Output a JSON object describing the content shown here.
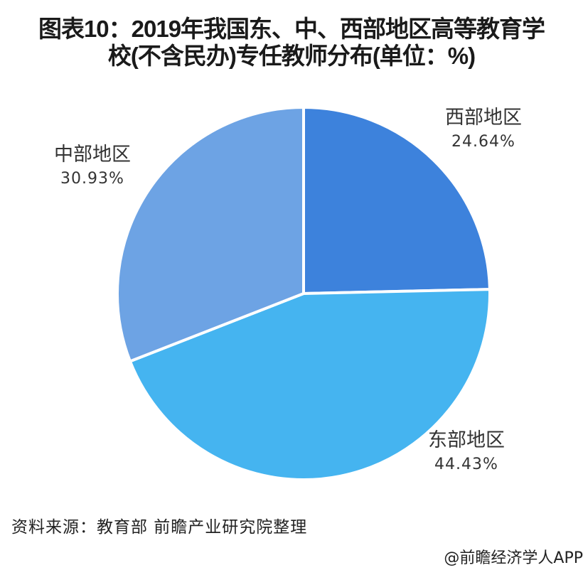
{
  "title": {
    "line1": "图表10：2019年我国东、中、西部地区高等教育学",
    "line2": "校(不含民办)专任教师分布(单位：%)"
  },
  "chart_data": {
    "type": "pie",
    "title": "图表10：2019年我国东、中、西部地区高等教育学校(不含民办)专任教师分布(单位：%)",
    "unit": "%",
    "categories": [
      "西部地区",
      "东部地区",
      "中部地区"
    ],
    "values": [
      24.64,
      44.43,
      30.93
    ],
    "value_labels": [
      "24.64%",
      "44.43%",
      "30.93%"
    ],
    "colors": [
      "#3d82dc",
      "#45b4f0",
      "#6da3e4"
    ],
    "start_angle": "12 o'clock, clockwise",
    "legend": "none (labels placed outside slices)"
  },
  "labels": {
    "west": {
      "name": "西部地区",
      "value": "24.64%"
    },
    "east": {
      "name": "东部地区",
      "value": "44.43%"
    },
    "central": {
      "name": "中部地区",
      "value": "30.93%"
    }
  },
  "footer": {
    "source": "资料来源：教育部 前瞻产业研究院整理",
    "credit": "@前瞻经济学人APP"
  }
}
